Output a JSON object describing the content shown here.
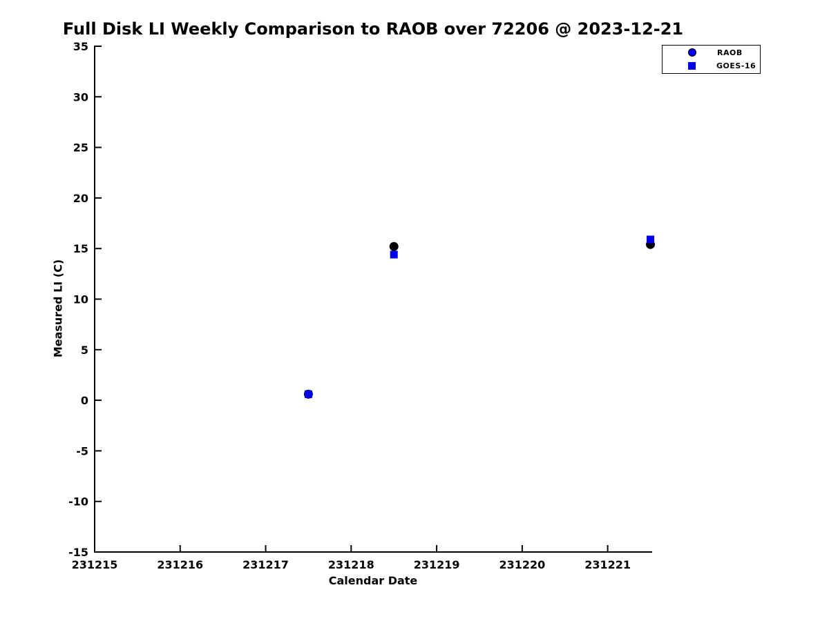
{
  "figure": {
    "background_color": "#ffffff",
    "axis_color": "#000000",
    "accent_blue": "#0000ee"
  },
  "chart_data": {
    "type": "scatter",
    "title": "Full Disk LI Weekly Comparison to RAOB over 72206 @ 2023-12-21",
    "xlabel": "Calendar Date",
    "ylabel": "Measured LI (C)",
    "xlim": [
      231215,
      231221.52
    ],
    "ylim": [
      -15,
      35
    ],
    "xticks": [
      231215,
      231216,
      231217,
      231218,
      231219,
      231220,
      231221
    ],
    "yticks": [
      -15,
      -10,
      -5,
      0,
      5,
      10,
      15,
      20,
      25,
      30,
      35
    ],
    "grid": false,
    "legend": {
      "position": "top-right",
      "entries": [
        "RAOB",
        "GOES-16"
      ]
    },
    "series": [
      {
        "name": "RAOB",
        "marker": "circle",
        "legend_color": "#0000ee",
        "point_color": "#000000",
        "points": [
          [
            231217.5,
            0.6
          ],
          [
            231218.5,
            15.2
          ],
          [
            231221.5,
            15.4
          ]
        ]
      },
      {
        "name": "GOES-16",
        "marker": "square",
        "legend_color": "#0000ee",
        "point_color": "#0000ee",
        "points": [
          [
            231217.5,
            0.6
          ],
          [
            231218.5,
            14.4
          ],
          [
            231221.5,
            15.9
          ]
        ]
      }
    ]
  }
}
